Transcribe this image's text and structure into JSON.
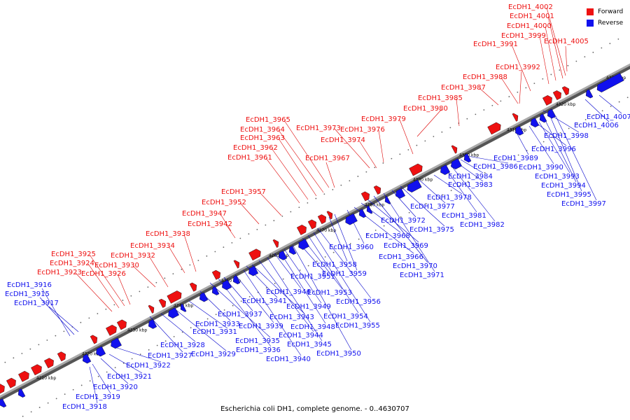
{
  "title": "Escherichia coli DH1, complete genome. - 0..4630707",
  "legend": [
    {
      "label": "Forward",
      "color": "#ee1111"
    },
    {
      "label": "Reverse",
      "color": "#1111ee"
    }
  ],
  "colors": {
    "forward": "#ee1111",
    "reverse": "#1111ee",
    "backbone": "#888888",
    "forward_line": "#dd0000",
    "reverse_line": "#0000cc"
  },
  "ticks": [
    "4210 kbp",
    "4220 kbp",
    "4230 kbp",
    "4240 kbp",
    "4250 kbp",
    "4260 kbp",
    "4270 kbp",
    "4280 kbp",
    "4290 kbp",
    "4300 kbp",
    "4310 kbp",
    "4320 kbp",
    "4330 kbp"
  ],
  "forward_labels": [
    "EcDH1_3923",
    "EcDH1_3924",
    "EcDH1_3925",
    "EcDH1_3926",
    "EcDH1_3930",
    "EcDH1_3932",
    "EcDH1_3934",
    "EcDH1_3938",
    "EcDH1_3942",
    "EcDH1_3947",
    "EcDH1_3952",
    "EcDH1_3957",
    "EcDH1_3961",
    "EcDH1_3962",
    "EcDH1_3963",
    "EcDH1_3964",
    "EcDH1_3965",
    "EcDH1_3967",
    "EcDH1_3973",
    "EcDH1_3974",
    "EcDH1_3976",
    "EcDH1_3979",
    "EcDH1_3980",
    "EcDH1_3985",
    "EcDH1_3987",
    "EcDH1_3988",
    "EcDH1_3991",
    "EcDH1_3992",
    "EcDH1_3999",
    "EcDH1_4000",
    "EcDH1_4001",
    "EcDH1_4002",
    "EcDH1_4005"
  ],
  "reverse_labels": [
    "EcDH1_3916",
    "EcDH1_3915",
    "EcDH1_3917",
    "EcDH1_3918",
    "EcDH1_3919",
    "EcDH1_3920",
    "EcDH1_3921",
    "EcDH1_3922",
    "EcDH1_3927",
    "EcDH1_3928",
    "EcDH1_3929",
    "EcDH1_3931",
    "EcDH1_3933",
    "EcDH1_3935",
    "EcDH1_3936",
    "EcDH1_3937",
    "EcDH1_3939",
    "EcDH1_3940",
    "EcDH1_3941",
    "EcDH1_3943",
    "EcDH1_3944",
    "EcDH1_3945",
    "EcDH1_3946",
    "EcDH1_3948",
    "EcDH1_3949",
    "EcDH1_3950",
    "EcDH1_3951",
    "EcDH1_3953",
    "EcDH1_3954",
    "EcDH1_3955",
    "EcDH1_3956",
    "EcDH1_3958",
    "EcDH1_3959",
    "EcDH1_3960",
    "EcDH1_3966",
    "EcDH1_3968",
    "EcDH1_3969",
    "EcDH1_3970",
    "EcDH1_3971",
    "EcDH1_3972",
    "EcDH1_3975",
    "EcDH1_3977",
    "EcDH1_3978",
    "EcDH1_3981",
    "EcDH1_3982",
    "EcDH1_3983",
    "EcDH1_3984",
    "EcDH1_3986",
    "EcDH1_3989",
    "EcDH1_3990",
    "EcDH1_3993",
    "EcDH1_3994",
    "EcDH1_3995",
    "EcDH1_3996",
    "EcDH1_3997",
    "EcDH1_3998",
    "EcDH1_4006",
    "EcDH1_4007"
  ]
}
